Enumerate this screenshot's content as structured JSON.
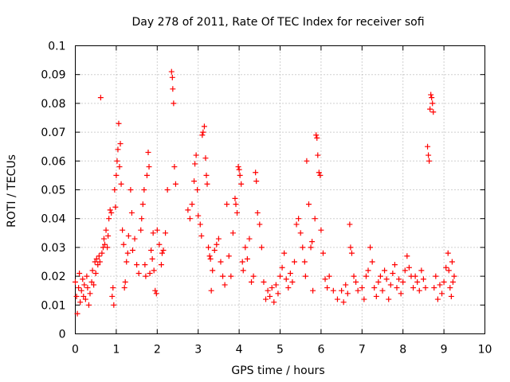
{
  "chart_data": {
    "type": "scatter",
    "title": "Day 278 of 2011, Rate Of TEC Index for receiver sofi",
    "xlabel": "GPS time / hours",
    "ylabel": "ROTI / TECUs",
    "xlim": [
      0,
      10
    ],
    "ylim": [
      0,
      0.1
    ],
    "xticks": [
      "0",
      "1",
      "2",
      "3",
      "4",
      "5",
      "6",
      "7",
      "8",
      "9",
      "10"
    ],
    "yticks": [
      "0",
      "0.01",
      "0.02",
      "0.03",
      "0.04",
      "0.05",
      "0.06",
      "0.07",
      "0.08",
      "0.09",
      "0.1"
    ],
    "grid": true,
    "marker": "plus",
    "color": "#ff0000",
    "series": [
      {
        "name": "ROTI",
        "points": [
          [
            0.0,
            0.018
          ],
          [
            0.03,
            0.013
          ],
          [
            0.05,
            0.007
          ],
          [
            0.08,
            0.016
          ],
          [
            0.1,
            0.021
          ],
          [
            0.12,
            0.011
          ],
          [
            0.15,
            0.015
          ],
          [
            0.18,
            0.019
          ],
          [
            0.2,
            0.013
          ],
          [
            0.22,
            0.017
          ],
          [
            0.25,
            0.012
          ],
          [
            0.28,
            0.02
          ],
          [
            0.3,
            0.016
          ],
          [
            0.33,
            0.01
          ],
          [
            0.36,
            0.014
          ],
          [
            0.4,
            0.018
          ],
          [
            0.42,
            0.022
          ],
          [
            0.45,
            0.017
          ],
          [
            0.48,
            0.025
          ],
          [
            0.5,
            0.021
          ],
          [
            0.52,
            0.026
          ],
          [
            0.55,
            0.024
          ],
          [
            0.58,
            0.027
          ],
          [
            0.6,
            0.025
          ],
          [
            0.62,
            0.082
          ],
          [
            0.65,
            0.028
          ],
          [
            0.68,
            0.03
          ],
          [
            0.7,
            0.033
          ],
          [
            0.72,
            0.031
          ],
          [
            0.75,
            0.036
          ],
          [
            0.78,
            0.03
          ],
          [
            0.8,
            0.034
          ],
          [
            0.82,
            0.04
          ],
          [
            0.85,
            0.043
          ],
          [
            0.88,
            0.042
          ],
          [
            0.9,
            0.013
          ],
          [
            0.92,
            0.016
          ],
          [
            0.94,
            0.01
          ],
          [
            0.96,
            0.05
          ],
          [
            0.98,
            0.044
          ],
          [
            1.0,
            0.055
          ],
          [
            1.02,
            0.06
          ],
          [
            1.04,
            0.064
          ],
          [
            1.06,
            0.073
          ],
          [
            1.08,
            0.058
          ],
          [
            1.1,
            0.066
          ],
          [
            1.12,
            0.052
          ],
          [
            1.15,
            0.036
          ],
          [
            1.18,
            0.031
          ],
          [
            1.2,
            0.016
          ],
          [
            1.22,
            0.018
          ],
          [
            1.25,
            0.025
          ],
          [
            1.28,
            0.028
          ],
          [
            1.3,
            0.034
          ],
          [
            1.35,
            0.05
          ],
          [
            1.38,
            0.042
          ],
          [
            1.4,
            0.029
          ],
          [
            1.45,
            0.033
          ],
          [
            1.5,
            0.024
          ],
          [
            1.55,
            0.021
          ],
          [
            1.6,
            0.036
          ],
          [
            1.62,
            0.04
          ],
          [
            1.65,
            0.045
          ],
          [
            1.68,
            0.05
          ],
          [
            1.7,
            0.024
          ],
          [
            1.72,
            0.02
          ],
          [
            1.75,
            0.055
          ],
          [
            1.78,
            0.063
          ],
          [
            1.8,
            0.058
          ],
          [
            1.82,
            0.021
          ],
          [
            1.85,
            0.029
          ],
          [
            1.88,
            0.026
          ],
          [
            1.9,
            0.035
          ],
          [
            1.92,
            0.022
          ],
          [
            1.95,
            0.015
          ],
          [
            1.98,
            0.014
          ],
          [
            2.0,
            0.036
          ],
          [
            2.05,
            0.031
          ],
          [
            2.1,
            0.024
          ],
          [
            2.12,
            0.028
          ],
          [
            2.15,
            0.029
          ],
          [
            2.2,
            0.035
          ],
          [
            2.25,
            0.05
          ],
          [
            2.35,
            0.091
          ],
          [
            2.37,
            0.089
          ],
          [
            2.38,
            0.085
          ],
          [
            2.4,
            0.08
          ],
          [
            2.42,
            0.058
          ],
          [
            2.45,
            0.052
          ],
          [
            2.75,
            0.043
          ],
          [
            2.8,
            0.04
          ],
          [
            2.85,
            0.045
          ],
          [
            2.9,
            0.053
          ],
          [
            2.92,
            0.059
          ],
          [
            2.95,
            0.062
          ],
          [
            2.98,
            0.05
          ],
          [
            3.0,
            0.041
          ],
          [
            3.05,
            0.038
          ],
          [
            3.08,
            0.034
          ],
          [
            3.1,
            0.069
          ],
          [
            3.12,
            0.07
          ],
          [
            3.15,
            0.072
          ],
          [
            3.18,
            0.061
          ],
          [
            3.2,
            0.055
          ],
          [
            3.22,
            0.052
          ],
          [
            3.25,
            0.03
          ],
          [
            3.28,
            0.027
          ],
          [
            3.3,
            0.026
          ],
          [
            3.32,
            0.015
          ],
          [
            3.35,
            0.022
          ],
          [
            3.4,
            0.029
          ],
          [
            3.45,
            0.031
          ],
          [
            3.5,
            0.033
          ],
          [
            3.55,
            0.025
          ],
          [
            3.6,
            0.02
          ],
          [
            3.65,
            0.017
          ],
          [
            3.7,
            0.045
          ],
          [
            3.75,
            0.027
          ],
          [
            3.8,
            0.02
          ],
          [
            3.85,
            0.035
          ],
          [
            3.9,
            0.047
          ],
          [
            3.92,
            0.045
          ],
          [
            3.95,
            0.042
          ],
          [
            3.98,
            0.058
          ],
          [
            4.0,
            0.057
          ],
          [
            4.02,
            0.055
          ],
          [
            4.05,
            0.052
          ],
          [
            4.08,
            0.025
          ],
          [
            4.1,
            0.022
          ],
          [
            4.15,
            0.03
          ],
          [
            4.2,
            0.026
          ],
          [
            4.25,
            0.033
          ],
          [
            4.3,
            0.018
          ],
          [
            4.35,
            0.02
          ],
          [
            4.4,
            0.056
          ],
          [
            4.42,
            0.053
          ],
          [
            4.45,
            0.042
          ],
          [
            4.5,
            0.038
          ],
          [
            4.55,
            0.03
          ],
          [
            4.6,
            0.018
          ],
          [
            4.65,
            0.012
          ],
          [
            4.7,
            0.015
          ],
          [
            4.75,
            0.013
          ],
          [
            4.8,
            0.016
          ],
          [
            4.85,
            0.011
          ],
          [
            4.9,
            0.017
          ],
          [
            4.95,
            0.014
          ],
          [
            5.0,
            0.02
          ],
          [
            5.05,
            0.023
          ],
          [
            5.1,
            0.028
          ],
          [
            5.15,
            0.019
          ],
          [
            5.2,
            0.016
          ],
          [
            5.25,
            0.021
          ],
          [
            5.3,
            0.018
          ],
          [
            5.35,
            0.025
          ],
          [
            5.4,
            0.038
          ],
          [
            5.45,
            0.04
          ],
          [
            5.5,
            0.035
          ],
          [
            5.55,
            0.03
          ],
          [
            5.6,
            0.025
          ],
          [
            5.62,
            0.02
          ],
          [
            5.65,
            0.06
          ],
          [
            5.7,
            0.045
          ],
          [
            5.75,
            0.03
          ],
          [
            5.78,
            0.032
          ],
          [
            5.8,
            0.015
          ],
          [
            5.85,
            0.04
          ],
          [
            5.88,
            0.069
          ],
          [
            5.9,
            0.068
          ],
          [
            5.92,
            0.062
          ],
          [
            5.95,
            0.056
          ],
          [
            5.98,
            0.055
          ],
          [
            6.0,
            0.036
          ],
          [
            6.05,
            0.028
          ],
          [
            6.1,
            0.019
          ],
          [
            6.15,
            0.016
          ],
          [
            6.2,
            0.02
          ],
          [
            6.3,
            0.015
          ],
          [
            6.4,
            0.012
          ],
          [
            6.5,
            0.015
          ],
          [
            6.55,
            0.011
          ],
          [
            6.6,
            0.017
          ],
          [
            6.65,
            0.014
          ],
          [
            6.7,
            0.038
          ],
          [
            6.72,
            0.03
          ],
          [
            6.75,
            0.028
          ],
          [
            6.8,
            0.02
          ],
          [
            6.85,
            0.018
          ],
          [
            6.9,
            0.015
          ],
          [
            7.0,
            0.016
          ],
          [
            7.05,
            0.012
          ],
          [
            7.1,
            0.02
          ],
          [
            7.15,
            0.022
          ],
          [
            7.2,
            0.03
          ],
          [
            7.25,
            0.025
          ],
          [
            7.3,
            0.016
          ],
          [
            7.35,
            0.013
          ],
          [
            7.4,
            0.018
          ],
          [
            7.45,
            0.02
          ],
          [
            7.5,
            0.015
          ],
          [
            7.55,
            0.022
          ],
          [
            7.6,
            0.019
          ],
          [
            7.65,
            0.012
          ],
          [
            7.7,
            0.017
          ],
          [
            7.75,
            0.021
          ],
          [
            7.8,
            0.024
          ],
          [
            7.85,
            0.016
          ],
          [
            7.9,
            0.019
          ],
          [
            7.95,
            0.014
          ],
          [
            8.0,
            0.018
          ],
          [
            8.05,
            0.022
          ],
          [
            8.1,
            0.027
          ],
          [
            8.15,
            0.023
          ],
          [
            8.2,
            0.02
          ],
          [
            8.25,
            0.016
          ],
          [
            8.3,
            0.02
          ],
          [
            8.35,
            0.018
          ],
          [
            8.4,
            0.015
          ],
          [
            8.45,
            0.022
          ],
          [
            8.5,
            0.019
          ],
          [
            8.55,
            0.016
          ],
          [
            8.6,
            0.065
          ],
          [
            8.62,
            0.062
          ],
          [
            8.64,
            0.06
          ],
          [
            8.66,
            0.078
          ],
          [
            8.68,
            0.083
          ],
          [
            8.7,
            0.082
          ],
          [
            8.72,
            0.08
          ],
          [
            8.74,
            0.077
          ],
          [
            8.76,
            0.016
          ],
          [
            8.8,
            0.02
          ],
          [
            8.85,
            0.012
          ],
          [
            8.9,
            0.017
          ],
          [
            8.95,
            0.014
          ],
          [
            9.0,
            0.018
          ],
          [
            9.05,
            0.023
          ],
          [
            9.1,
            0.028
          ],
          [
            9.12,
            0.022
          ],
          [
            9.15,
            0.016
          ],
          [
            9.18,
            0.013
          ],
          [
            9.2,
            0.025
          ],
          [
            9.22,
            0.018
          ],
          [
            9.25,
            0.02
          ]
        ]
      }
    ]
  }
}
